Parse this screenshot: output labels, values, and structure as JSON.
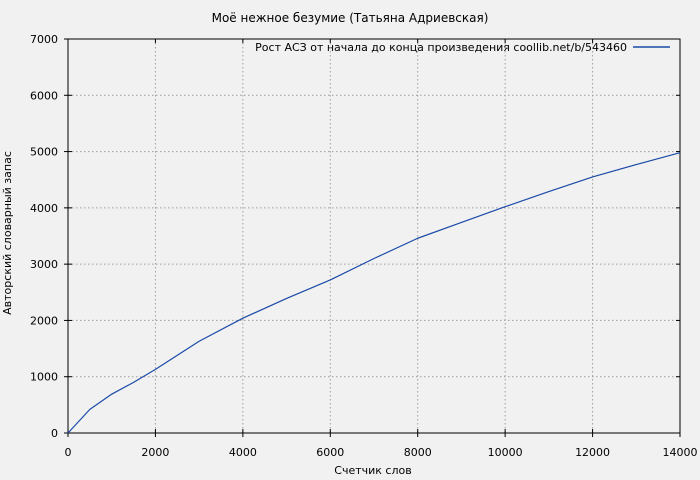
{
  "title": "Моё нежное безумие (Татьяна Адриевская)",
  "legend": {
    "label": "Рост АСЗ от начала до конца произведения coollib.net/b/543460"
  },
  "axes": {
    "x": {
      "label": "Счетчик слов",
      "ticks": [
        0,
        2000,
        4000,
        6000,
        8000,
        10000,
        12000,
        14000
      ]
    },
    "y": {
      "label": "Авторский словарный запас",
      "ticks": [
        0,
        1000,
        2000,
        3000,
        4000,
        5000,
        6000,
        7000
      ]
    }
  },
  "colors": {
    "accent": "#1a4aa8",
    "background": "#f1f1f1",
    "grid": "#9e9e9e",
    "axis": "#000000",
    "text": "#000000"
  },
  "chart_data": {
    "type": "line",
    "title": "Моё нежное безумие (Татьяна Адриевская)",
    "xlabel": "Счетчик слов",
    "ylabel": "Авторский словарный запас",
    "xlim": [
      0,
      14000
    ],
    "ylim": [
      0,
      7000
    ],
    "x_ticks": [
      0,
      2000,
      4000,
      6000,
      8000,
      10000,
      12000,
      14000
    ],
    "y_ticks": [
      0,
      1000,
      2000,
      3000,
      4000,
      5000,
      6000,
      7000
    ],
    "grid": true,
    "grid_style": "dotted",
    "legend_position": "top-center-inside",
    "series": [
      {
        "name": "Рост АСЗ от начала до конца произведения coollib.net/b/543460",
        "color": "#1a4aa8",
        "x": [
          0,
          500,
          1000,
          1500,
          2000,
          3000,
          4000,
          5000,
          6000,
          7000,
          8000,
          9000,
          10000,
          11000,
          12000,
          13000,
          14000
        ],
        "y": [
          0,
          420,
          690,
          900,
          1130,
          1630,
          2040,
          2390,
          2720,
          3100,
          3460,
          3740,
          4020,
          4290,
          4550,
          4770,
          4980
        ]
      }
    ]
  }
}
